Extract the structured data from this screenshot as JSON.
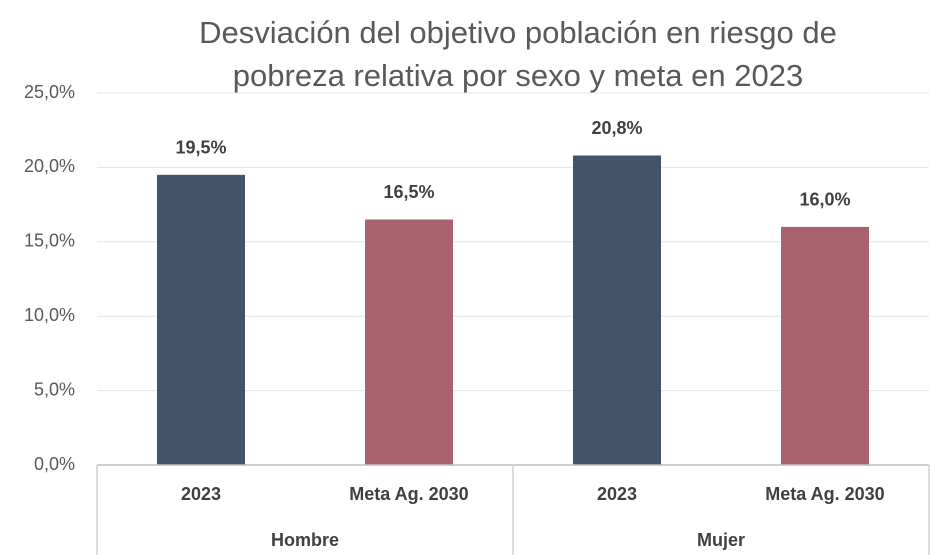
{
  "chart_data": {
    "type": "bar",
    "title": [
      "Desviación del objetivo población en riesgo de",
      "pobreza relativa por sexo y meta en 2023"
    ],
    "categories": [
      "2023",
      "Meta Ag. 2030",
      "2023",
      "Meta Ag. 2030"
    ],
    "groups": [
      "Hombre",
      "Mujer"
    ],
    "values": [
      19.5,
      16.5,
      20.8,
      16.0
    ],
    "value_labels": [
      "19,5%",
      "16,5%",
      "20,8%",
      "16,0%"
    ],
    "colors": [
      "#44546a",
      "#a8636f",
      "#44546a",
      "#a8636f"
    ],
    "ylim": [
      0,
      25
    ],
    "yticks": [
      {
        "value": 0,
        "label": "0,0%"
      },
      {
        "value": 5,
        "label": "5,0%"
      },
      {
        "value": 10,
        "label": "10,0%"
      },
      {
        "value": 15,
        "label": "15,0%"
      },
      {
        "value": 20,
        "label": "20,0%"
      },
      {
        "value": 25,
        "label": "25,0%"
      }
    ],
    "grid": true
  }
}
